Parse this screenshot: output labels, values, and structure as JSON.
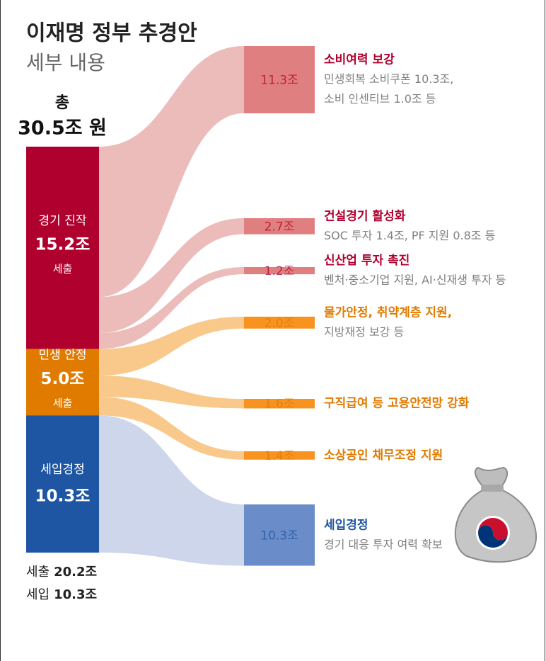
{
  "chart_data": {
    "type": "sankey",
    "title": "이재명 정부 추경안",
    "subtitle": "세부 내용",
    "total_prefix": "총",
    "total": 30.5,
    "total_label": "30.5조 원",
    "sources": [
      {
        "name": "경기 진작",
        "value": 15.2,
        "value_label": "15.2조",
        "note": "세출",
        "color": "#b0002e",
        "link_color": "#ecbcbb",
        "target_color": "#e07f7f",
        "text_color": "#b0002e",
        "targets": [
          {
            "value": 11.3,
            "value_label": "11.3조",
            "title": "소비여력 보강",
            "description": [
              "민생회복 소비쿠폰 10.3조,",
              "소비 인센티브 1.0조 등"
            ]
          },
          {
            "value": 2.7,
            "value_label": "2.7조",
            "title": "건설경기 활성화",
            "description": [
              "SOC 투자 1.4조, PF 지원 0.8조 등"
            ]
          },
          {
            "value": 1.2,
            "value_label": "1.2조",
            "title": "신산업 투자 촉진",
            "description": [
              "벤처·중소기업 지원, AI·신재생 투자 등"
            ]
          }
        ]
      },
      {
        "name": "민생 안정",
        "value": 5.0,
        "value_label": "5.0조",
        "note": "세출",
        "color": "#e07b00",
        "link_color": "#f9c98c",
        "target_color": "#f7931e",
        "text_color": "#e07b00",
        "targets": [
          {
            "value": 2.0,
            "value_label": "2.0조",
            "title": "물가안정, 취약계층 지원,",
            "description": [
              "지방재정 보강 등"
            ]
          },
          {
            "value": 1.6,
            "value_label": "1.6조",
            "title": "구직급여 등 고용안전망 강화",
            "description": []
          },
          {
            "value": 1.4,
            "value_label": "1.4조",
            "title": "소상공인 채무조정 지원",
            "description": []
          }
        ]
      },
      {
        "name": "세입경정",
        "value": 10.3,
        "value_label": "10.3조",
        "color": "#1f56a3",
        "link_color": "#cdd6ea",
        "target_color": "#6a8cc8",
        "text_color": "#1f56a3",
        "targets": [
          {
            "value": 10.3,
            "value_label": "10.3조",
            "title": "세입경정",
            "description": [
              "경기 대응 투자 여력 확보"
            ]
          }
        ]
      }
    ],
    "footer": [
      {
        "name": "세출",
        "amount": "20.2조"
      },
      {
        "name": "세입",
        "amount": "10.3조"
      }
    ]
  }
}
